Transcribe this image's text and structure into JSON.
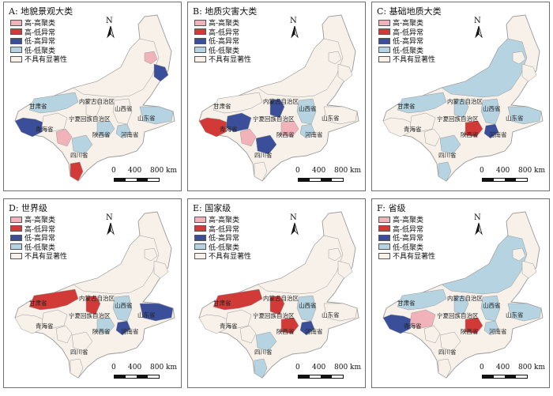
{
  "colors": {
    "hh": "#f2b2ba",
    "hl": "#d23a37",
    "lh": "#3b4e99",
    "ll": "#b5d3e0",
    "ns": "#f7f1ea",
    "outline": "#9a9a9a"
  },
  "legend_items": [
    {
      "key": "hh",
      "label": "高-高聚类"
    },
    {
      "key": "hl",
      "label": "高-低异常"
    },
    {
      "key": "lh",
      "label": "低-高异常"
    },
    {
      "key": "ll",
      "label": "低-低聚类"
    },
    {
      "key": "ns",
      "label": "不具有显著性"
    }
  ],
  "north_letter": "N",
  "scale": {
    "zero": "0",
    "mid": "400",
    "end": "800 km"
  },
  "province_labels": {
    "gansu": "甘肃省",
    "neimenggu": "内蒙古自治区",
    "shanxi": "山西省",
    "shandong": "山东省",
    "ningxia": "宁夏回族自治区",
    "qinghai": "青海省",
    "shaanxi": "陕西省",
    "henan": "河南省",
    "sichuan": "四川省"
  },
  "panels": [
    {
      "id": "A",
      "title": "A: 地貌景观大类",
      "fills": {
        "qinghai_w": "lh",
        "qinghai_e": "ns",
        "gansu_sw": "hh",
        "sichuan_nw": "ll",
        "sichuan_s": "hl",
        "shaanxi_s": "ll",
        "henan_w": "ll",
        "neimenggu_e": "lh",
        "neimenggu_ne": "hh",
        "gansu": "ll",
        "shandong": "ll",
        "neimenggu": "ns",
        "ningxia": "ns",
        "shanxi": "ns"
      }
    },
    {
      "id": "B",
      "title": "B: 地质灾害大类",
      "fills": {
        "qinghai_w": "hl",
        "qinghai_e": "lh",
        "gansu_sw": "hh",
        "sichuan_nw": "lh",
        "sichuan_s": "ns",
        "shaanxi_s": "hh",
        "henan_w": "ll",
        "neimenggu_e": "ns",
        "neimenggu_ne": "ns",
        "gansu": "ns",
        "shandong": "ns",
        "neimenggu": "ns",
        "ningxia": "lh",
        "shanxi": "ll"
      }
    },
    {
      "id": "C",
      "title": "C: 基础地质大类",
      "fills": {
        "qinghai_w": "ns",
        "qinghai_e": "ns",
        "gansu_sw": "ns",
        "sichuan_nw": "ll",
        "sichuan_s": "ll",
        "shaanxi_s": "hl",
        "henan_w": "lh",
        "neimenggu_e": "ns",
        "neimenggu_ne": "ns",
        "gansu": "ll",
        "shandong": "ll",
        "neimenggu": "ll",
        "ningxia": "ll",
        "shanxi": "ll"
      }
    },
    {
      "id": "D",
      "title": "D: 世界级",
      "fills": {
        "qinghai_w": "ns",
        "qinghai_e": "ns",
        "gansu_sw": "ns",
        "sichuan_nw": "ns",
        "sichuan_s": "ns",
        "shaanxi_s": "ll",
        "henan_w": "lh",
        "neimenggu_e": "ns",
        "neimenggu_ne": "ns",
        "gansu": "hl",
        "shandong": "lh",
        "neimenggu": "ns",
        "ningxia": "hl",
        "shanxi": "ll"
      }
    },
    {
      "id": "E",
      "title": "E: 国家级",
      "fills": {
        "qinghai_w": "ns",
        "qinghai_e": "ns",
        "gansu_sw": "ns",
        "sichuan_nw": "ll",
        "sichuan_s": "ll",
        "shaanxi_s": "hl",
        "henan_w": "lh",
        "neimenggu_e": "ns",
        "neimenggu_ne": "ns",
        "gansu": "hl",
        "shandong": "ns",
        "neimenggu": "ns",
        "ningxia": "hl",
        "shanxi": "ll"
      }
    },
    {
      "id": "F",
      "title": "F: 省级",
      "fills": {
        "qinghai_w": "lh",
        "qinghai_e": "hh",
        "gansu_sw": "ns",
        "sichuan_nw": "ns",
        "sichuan_s": "ns",
        "shaanxi_s": "hl",
        "henan_w": "ll",
        "neimenggu_e": "ns",
        "neimenggu_ne": "ns",
        "gansu": "ll",
        "shandong": "ll",
        "neimenggu": "ll",
        "ningxia": "ll",
        "shanxi": "ll"
      }
    }
  ]
}
